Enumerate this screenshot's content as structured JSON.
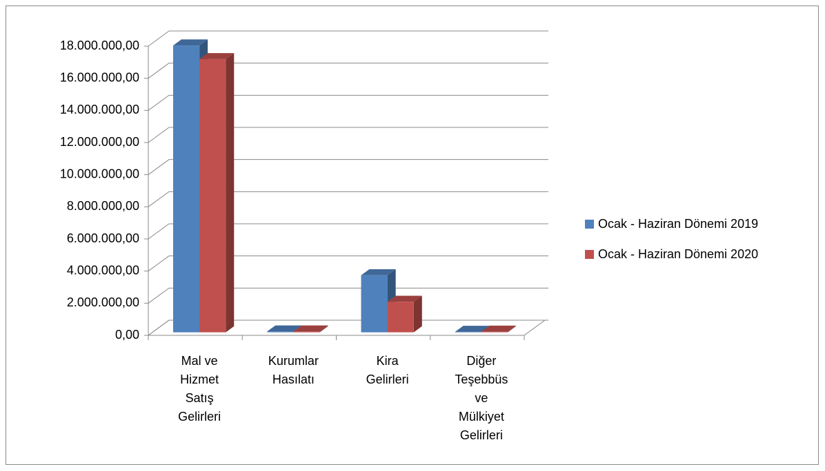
{
  "chart_data": {
    "type": "bar3d",
    "categories": [
      "Mal ve Hizmet Satış Gelirleri",
      "Kurumlar Hasılatı",
      "Kira Gelirleri",
      "Diğer Teşebbüs ve Mülkiyet Gelirleri"
    ],
    "series": [
      {
        "name": "Ocak - Haziran Dönemi 2019",
        "color": "#4f81bd",
        "values": [
          17850000,
          50000,
          3550000,
          30000
        ]
      },
      {
        "name": "Ocak - Haziran Dönemi 2020",
        "color": "#c0504d",
        "values": [
          17000000,
          50000,
          1900000,
          40000
        ]
      }
    ],
    "ylim": [
      0,
      18000000
    ],
    "yticks": [
      {
        "value": 0,
        "label": "0,00"
      },
      {
        "value": 2000000,
        "label": "2.000.000,00"
      },
      {
        "value": 4000000,
        "label": "4.000.000,00"
      },
      {
        "value": 6000000,
        "label": "6.000.000,00"
      },
      {
        "value": 8000000,
        "label": "8.000.000,00"
      },
      {
        "value": 10000000,
        "label": "10.000.000,00"
      },
      {
        "value": 12000000,
        "label": "12.000.000,00"
      },
      {
        "value": 14000000,
        "label": "14.000.000,00"
      },
      {
        "value": 16000000,
        "label": "16.000.000,00"
      },
      {
        "value": 18000000,
        "label": "18.000.000,00"
      }
    ],
    "grid": true,
    "legend": "right"
  }
}
